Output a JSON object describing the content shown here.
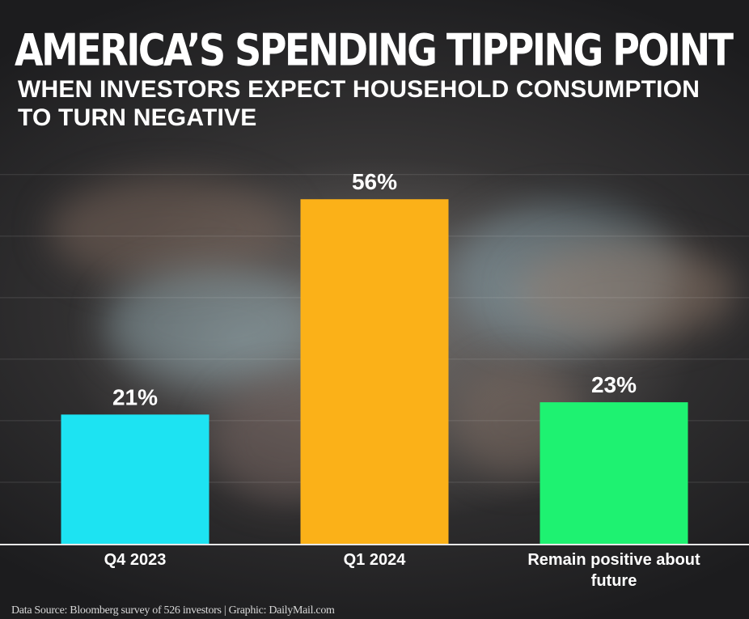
{
  "title": "AMERICA’S SPENDING TIPPING POINT",
  "subtitle": "WHEN INVESTORS EXPECT HOUSEHOLD CONSUMPTION TO TURN NEGATIVE",
  "source": "Data Source: Bloomberg survey of 526 investors | Graphic: DailyMail.com",
  "chart_data": {
    "type": "bar",
    "categories": [
      "Q4 2023",
      "Q1 2024",
      "Remain positive about future"
    ],
    "values": [
      21,
      56,
      23
    ],
    "data_labels": [
      "21%",
      "56%",
      "23%"
    ],
    "colors": [
      "#1de3f2",
      "#fbb118",
      "#1ef271"
    ],
    "ylim": [
      0,
      63
    ],
    "grid": true,
    "legend": "none"
  }
}
